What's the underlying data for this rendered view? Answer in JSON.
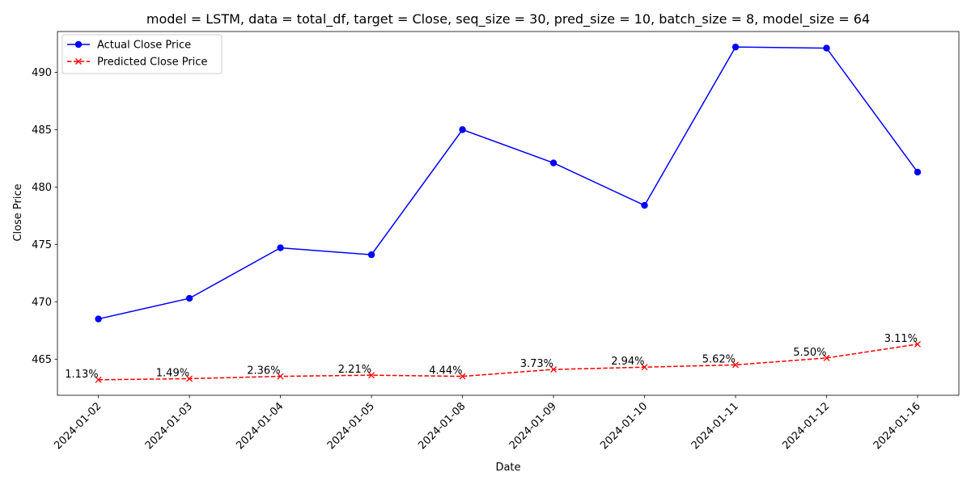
{
  "chart_data": {
    "type": "line",
    "title": "model = LSTM, data = total_df, target = Close, seq_size = 30, pred_size = 10, batch_size = 8, model_size = 64",
    "xlabel": "Date",
    "ylabel": "Close Price",
    "categories": [
      "2024-01-02",
      "2024-01-03",
      "2024-01-04",
      "2024-01-05",
      "2024-01-08",
      "2024-01-09",
      "2024-01-10",
      "2024-01-11",
      "2024-01-12",
      "2024-01-16"
    ],
    "yticks": [
      465,
      470,
      475,
      480,
      485,
      490
    ],
    "ylim": [
      461.85,
      493.55
    ],
    "grid": false,
    "legend_position": "top-left",
    "series": [
      {
        "name": "Actual Close Price",
        "color": "#0000ff",
        "marker": "circle",
        "line_style": "solid",
        "values": [
          468.5,
          470.3,
          474.7,
          474.1,
          485.0,
          482.1,
          478.4,
          492.2,
          492.1,
          481.3
        ]
      },
      {
        "name": "Predicted Close Price",
        "color": "#ff0000",
        "marker": "x",
        "line_style": "dashed",
        "values": [
          463.2,
          463.3,
          463.5,
          463.6,
          463.5,
          464.1,
          464.3,
          464.5,
          465.1,
          466.3
        ]
      }
    ],
    "annotations": [
      "1.13%",
      "1.49%",
      "2.36%",
      "2.21%",
      "4.44%",
      "3.73%",
      "2.94%",
      "5.62%",
      "5.50%",
      "3.11%"
    ]
  }
}
